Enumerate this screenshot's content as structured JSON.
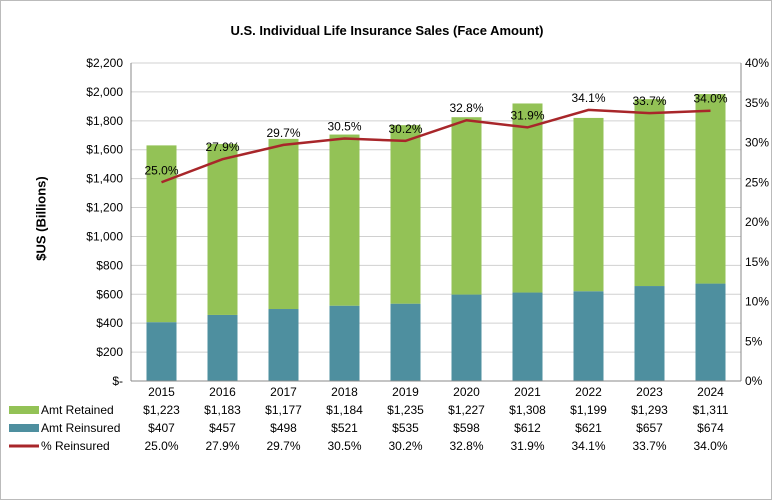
{
  "chart_data": {
    "type": "bar",
    "title": "U.S. Individual Life Insurance Sales (Face Amount)",
    "ylabel": "$US (Billions)",
    "ylim": [
      0,
      2200
    ],
    "y2lim": [
      0,
      40
    ],
    "yticks": [
      "$-",
      "$200",
      "$400",
      "$600",
      "$800",
      "$1,000",
      "$1,200",
      "$1,400",
      "$1,600",
      "$1,800",
      "$2,000",
      "$2,200"
    ],
    "y2ticks": [
      "0%",
      "5%",
      "10%",
      "15%",
      "20%",
      "25%",
      "30%",
      "35%",
      "40%"
    ],
    "grid": true,
    "stacked": true,
    "categories": [
      "2015",
      "2016",
      "2017",
      "2018",
      "2019",
      "2020",
      "2021",
      "2022",
      "2023",
      "2024"
    ],
    "series": [
      {
        "name": "Amt Reinsured",
        "type": "bar",
        "color": "#4e8f9f",
        "values": [
          407,
          457,
          498,
          521,
          535,
          598,
          612,
          621,
          657,
          674
        ],
        "labels": [
          "$407",
          "$457",
          "$498",
          "$521",
          "$535",
          "$598",
          "$612",
          "$621",
          "$657",
          "$674"
        ]
      },
      {
        "name": "Amt Retained",
        "type": "bar",
        "color": "#93c256",
        "values": [
          1223,
          1183,
          1177,
          1184,
          1235,
          1227,
          1308,
          1199,
          1293,
          1311
        ],
        "labels": [
          "$1,223",
          "$1,183",
          "$1,177",
          "$1,184",
          "$1,235",
          "$1,227",
          "$1,308",
          "$1,199",
          "$1,293",
          "$1,311"
        ]
      },
      {
        "name": "% Reinsured",
        "type": "line",
        "axis": "right",
        "color": "#a8262a",
        "values": [
          25.0,
          27.9,
          29.7,
          30.5,
          30.2,
          32.8,
          31.9,
          34.1,
          33.7,
          34.0
        ],
        "labels": [
          "25.0%",
          "27.9%",
          "29.7%",
          "30.5%",
          "30.2%",
          "32.8%",
          "31.9%",
          "34.1%",
          "33.7%",
          "34.0%"
        ]
      }
    ],
    "legend": "data-table-below"
  }
}
